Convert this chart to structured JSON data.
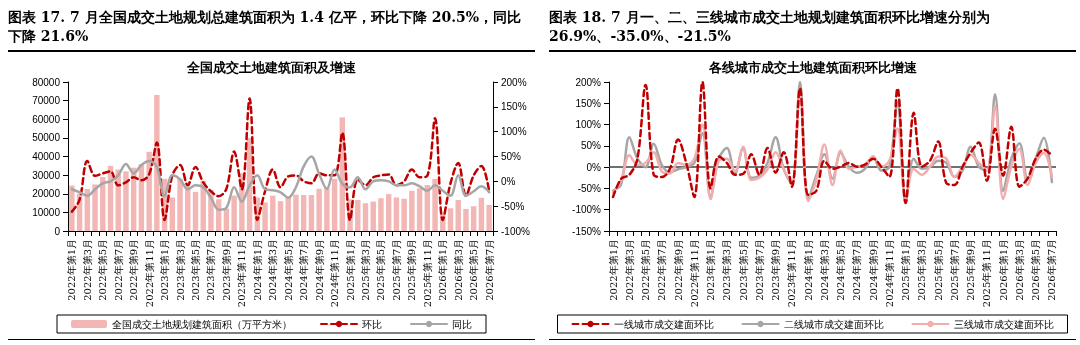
{
  "chart_data": [
    {
      "type": "bar",
      "title": "图表 17. 7 月全国成交土地规划总建筑面积为 1.4 亿平，环比下降 20.5%，同比下降 21.6%",
      "subtitle": "全国成交土地建筑面积及增速",
      "categories": [
        "2022年第1月",
        null,
        "2022年第3月",
        null,
        "2022年第5月",
        null,
        "2022年第7月",
        null,
        "2022年第9月",
        null,
        "2022年第11月",
        null,
        "2023年第1月",
        null,
        "2023年第3月",
        null,
        "2023年第5月",
        null,
        "2023年第7月",
        null,
        "2023年第9月",
        null,
        "2023年第11月",
        null,
        "2024年第1月",
        null,
        "2024年第3月",
        null,
        "2024年第5月",
        null,
        "2024年第7月",
        null,
        "2024年第9月",
        null,
        "2024年第11月",
        null,
        "2025年第1月",
        null,
        "2025年第3月",
        null,
        "2025年第5月",
        null,
        "2025年第7月",
        null,
        "2025年第9月",
        null,
        "2025年第11月",
        null,
        "2026年第1月",
        null,
        "2026年第3月",
        null,
        "2026年第5月",
        null,
        "2026年第7月"
      ],
      "series": [
        {
          "name": "全国成交土地规划建筑面积（万平方米）",
          "type": "bar",
          "color": "#f2b6b4",
          "values": [
            24400,
            20000,
            22500,
            25000,
            29000,
            35000,
            33000,
            32000,
            34000,
            36000,
            42500,
            73000,
            28000,
            18000,
            28000,
            24000,
            21000,
            27000,
            22000,
            17000,
            12000,
            19000,
            31000,
            50000,
            18000,
            15300,
            19000,
            16000,
            17800,
            19500,
            19300,
            19300,
            22700,
            23300,
            28000,
            61000,
            17000,
            16700,
            14900,
            15800,
            17600,
            19800,
            18000,
            17300,
            21600,
            22900,
            24700,
            28000,
            9000,
            12200,
            16700,
            11800,
            13300,
            17800,
            14000
          ]
        },
        {
          "name": "环比",
          "type": "line",
          "axis": "y2",
          "color": "#c00000",
          "line_style": "dashed",
          "values": [
            -61,
            -37,
            41,
            11,
            16,
            20,
            -8,
            -2,
            8,
            2,
            14,
            78,
            -78,
            12,
            33,
            -8,
            29,
            -2,
            -20,
            -30,
            -15,
            60,
            -16,
            167,
            -78,
            -20,
            24,
            -12,
            10,
            12,
            0,
            -4,
            16,
            12,
            12,
            98,
            -78,
            4,
            -8,
            8,
            12,
            14,
            -8,
            0,
            24,
            8,
            11,
            127,
            -78,
            -4,
            37,
            -29,
            12,
            31,
            -20
          ]
        },
        {
          "name": "同比",
          "type": "line",
          "axis": "y2",
          "color": "#a6a6a6",
          "line_style": "solid",
          "values": [
            -16,
            -22,
            -29,
            -16,
            -4,
            0,
            12,
            35,
            16,
            33,
            41,
            29,
            -30,
            12,
            4,
            -16,
            -8,
            -12,
            -33,
            -57,
            -53,
            -12,
            -41,
            -8,
            12,
            -16,
            -18,
            -22,
            -33,
            -12,
            30,
            50,
            15,
            -15,
            24,
            -5,
            -12,
            8,
            -16,
            0,
            2,
            0,
            -8,
            -8,
            -4,
            -10,
            -19,
            -8,
            -19,
            -29,
            12,
            -29,
            -20,
            -10,
            -22
          ]
        }
      ],
      "ylim": [
        0,
        80000
      ],
      "yticks": [
        0,
        10000,
        20000,
        30000,
        40000,
        50000,
        60000,
        70000,
        80000
      ],
      "y2lim": [
        -100,
        200
      ],
      "y2ticks": [
        {
          "value": -100,
          "label": "-100%"
        },
        {
          "value": -50,
          "label": "-50%"
        },
        {
          "value": 0,
          "label": "0%"
        },
        {
          "value": 50,
          "label": "50%"
        },
        {
          "value": 100,
          "label": "100%"
        },
        {
          "value": 150,
          "label": "150%"
        },
        {
          "value": 200,
          "label": "200%"
        }
      ],
      "legend": "bottom",
      "marker": "none"
    },
    {
      "type": "line",
      "title": "图表 18. 7 月一、二、三线城市成交土地规划建筑面积环比增速分别为 26.9%、-35.0%、-21.5%",
      "subtitle": "各线城市成交土地建筑面积环比增速",
      "categories": [
        "2022年第1月",
        null,
        "2022年第3月",
        null,
        "2022年第5月",
        null,
        "2022年第7月",
        null,
        "2022年第9月",
        null,
        "2022年第11月",
        null,
        "2023年第1月",
        null,
        "2023年第3月",
        null,
        "2023年第5月",
        null,
        "2023年第7月",
        null,
        "2023年第9月",
        null,
        "2023年第11月",
        null,
        "2024年第1月",
        null,
        "2024年第3月",
        null,
        "2024年第5月",
        null,
        "2024年第7月",
        null,
        "2024年第9月",
        null,
        "2024年第11月",
        null,
        "2025年第1月",
        null,
        "2025年第3月",
        null,
        "2025年第5月",
        null,
        "2025年第7月",
        null,
        "2025年第9月",
        null,
        "2025年第11月",
        null,
        "2026年第1月",
        null,
        "2026年第3月",
        null,
        "2026年第5月",
        null,
        "2026年第7月"
      ],
      "series": [
        {
          "name": "一线城市成交建面环比",
          "color": "#c00000",
          "line_style": "dashed",
          "values": [
            -70,
            -27,
            -18,
            20,
            193,
            -18,
            -23,
            -4,
            65,
            10,
            -70,
            200,
            -50,
            25,
            10,
            -18,
            -16,
            30,
            -18,
            45,
            -13,
            35,
            -46,
            185,
            -65,
            -56,
            15,
            -4,
            1,
            10,
            1,
            6,
            20,
            1,
            -23,
            185,
            -84,
            128,
            1,
            15,
            60,
            -37,
            -42,
            1,
            34,
            58,
            -32,
            90,
            -20,
            95,
            -46,
            -27,
            20,
            41,
            27
          ]
        },
        {
          "name": "二线城市成交建面环比",
          "color": "#a6a6a6",
          "line_style": "solid",
          "values": [
            -55,
            -40,
            70,
            20,
            0,
            55,
            5,
            -12,
            -5,
            0,
            10,
            80,
            -70,
            20,
            45,
            -15,
            45,
            -25,
            -20,
            10,
            70,
            -5,
            -40,
            200,
            -75,
            -20,
            30,
            -27,
            34,
            1,
            -13,
            -4,
            25,
            -8,
            1,
            152,
            -84,
            20,
            -4,
            1,
            15,
            10,
            -23,
            -8,
            48,
            1,
            -8,
            171,
            -56,
            20,
            56,
            -27,
            20,
            69,
            -35
          ]
        },
        {
          "name": "三线城市成交建面环比",
          "color": "#f2aeae",
          "line_style": "solid",
          "values": [
            -60,
            -30,
            28,
            5,
            10,
            35,
            -10,
            -15,
            10,
            5,
            20,
            100,
            -75,
            15,
            20,
            -10,
            48,
            -30,
            -25,
            -5,
            35,
            -5,
            -40,
            180,
            -80,
            -30,
            53,
            -42,
            39,
            -4,
            1,
            6,
            25,
            1,
            15,
            91,
            -75,
            -4,
            -18,
            1,
            25,
            20,
            -23,
            1,
            29,
            10,
            -8,
            143,
            -75,
            1,
            43,
            -42,
            10,
            34,
            -22
          ]
        }
      ],
      "ylim": [
        -150,
        200
      ],
      "yticks": [
        {
          "value": -150,
          "label": "-150%"
        },
        {
          "value": -100,
          "label": "-100%"
        },
        {
          "value": -50,
          "label": "-50%"
        },
        {
          "value": 0,
          "label": "0%"
        },
        {
          "value": 50,
          "label": "50%"
        },
        {
          "value": 100,
          "label": "100%"
        },
        {
          "value": 150,
          "label": "150%"
        },
        {
          "value": 200,
          "label": "200%"
        }
      ],
      "ref_lines": [
        {
          "axis": "y",
          "value": 0,
          "color": "#404040"
        }
      ],
      "legend": "bottom",
      "marker": "none"
    }
  ]
}
